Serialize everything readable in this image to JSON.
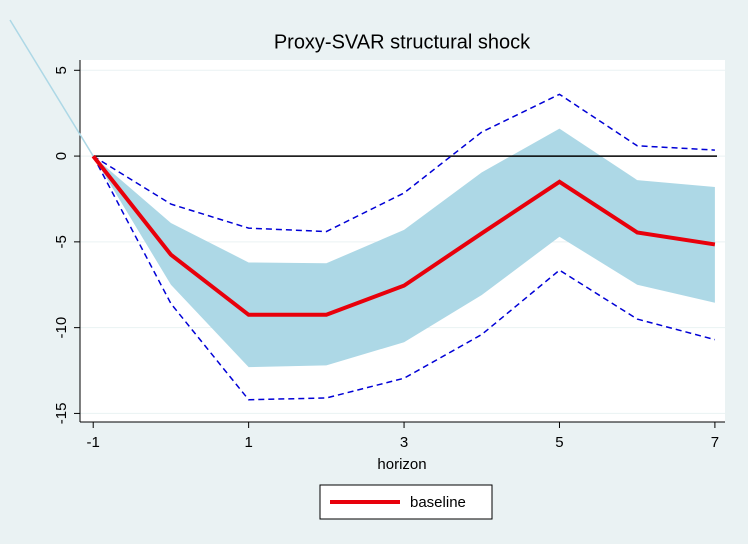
{
  "chart_data": {
    "type": "line",
    "title": "Proxy-SVAR structural shock",
    "x_label": "horizon",
    "x": [
      -1,
      0,
      1,
      2,
      3,
      4,
      5,
      6,
      7
    ],
    "series": [
      {
        "name": "baseline",
        "color": "#e8000b",
        "values": [
          0,
          -5.75,
          -9.25,
          -9.25,
          -7.55,
          -4.5,
          -1.5,
          -4.45,
          -5.15
        ]
      }
    ],
    "band": {
      "color": "#add8e6",
      "upper": [
        0,
        -3.9,
        -6.2,
        -6.25,
        -4.3,
        -0.95,
        1.6,
        -1.4,
        -1.8
      ],
      "lower": [
        0,
        -7.5,
        -12.3,
        -12.2,
        -10.85,
        -8.1,
        -4.7,
        -7.5,
        -8.55
      ]
    },
    "dashed": [
      {
        "color": "#0000d6",
        "values": [
          0,
          -2.8,
          -4.2,
          -4.4,
          -2.15,
          1.4,
          3.6,
          0.6,
          0.35
        ]
      },
      {
        "color": "#0000d6",
        "values": [
          0,
          -8.6,
          -14.2,
          -14.1,
          -12.95,
          -10.4,
          -6.65,
          -9.5,
          -10.7
        ]
      }
    ],
    "hline": 0,
    "xlim": [
      -1.17,
      7.13
    ],
    "xticks": [
      -1,
      1,
      3,
      5,
      7
    ],
    "ylim": [
      -15.5,
      5.6
    ],
    "yticks": [
      -15,
      -10,
      -5,
      0,
      5
    ],
    "grid": true,
    "legend": "bottom"
  }
}
